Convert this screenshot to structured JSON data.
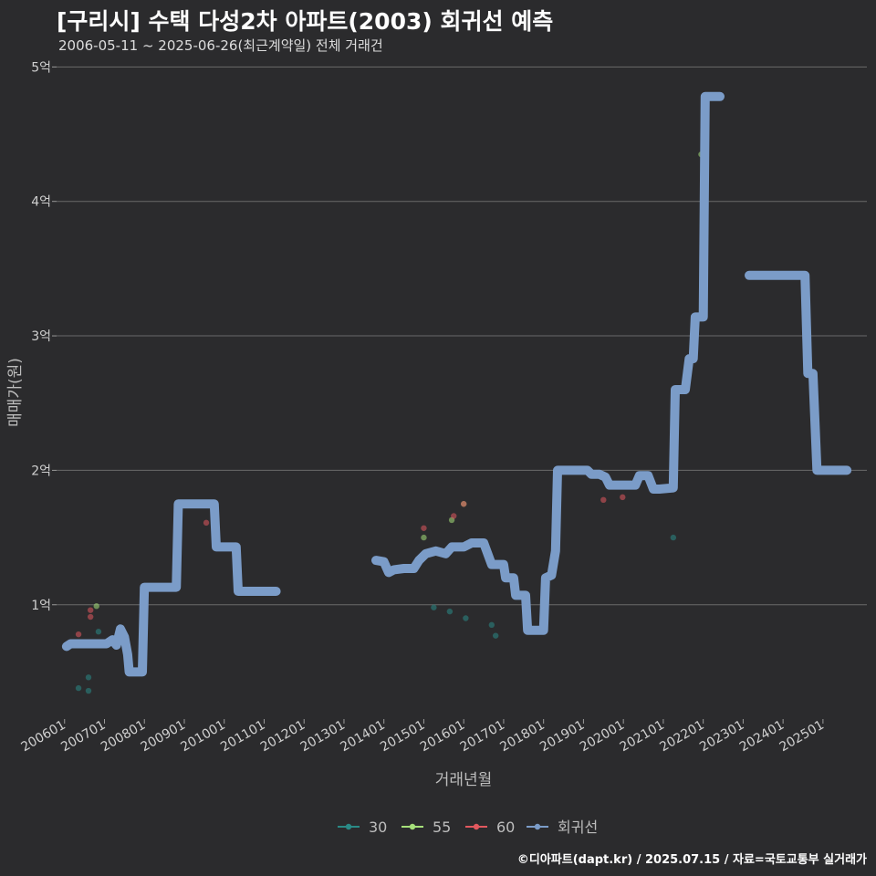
{
  "chart_data": {
    "type": "line",
    "title": "[구리시] 수택 다성2차 아파트(2003) 회귀선 예측",
    "subtitle": "2006-05-11 ~ 2025-06-26(최근계약일) 전체 거래건",
    "xlabel": "거래년월",
    "ylabel": "매매가(원)",
    "caption": "©디아파트(dapt.kr) / 2025.07.15 / 자료=국토교통부 실거래가",
    "y_ticks": [
      {
        "v": 1,
        "label": "1억"
      },
      {
        "v": 2,
        "label": "2억"
      },
      {
        "v": 3,
        "label": "3억"
      },
      {
        "v": 4,
        "label": "4억"
      },
      {
        "v": 5,
        "label": "5억"
      }
    ],
    "ylim": [
      0.15,
      5.05
    ],
    "xlim": [
      2005.8,
      2026.1
    ],
    "x_ticks": [
      {
        "v": 2006.0,
        "label": "200601"
      },
      {
        "v": 2007.0,
        "label": "200701"
      },
      {
        "v": 2008.0,
        "label": "200801"
      },
      {
        "v": 2009.0,
        "label": "200901"
      },
      {
        "v": 2010.0,
        "label": "201001"
      },
      {
        "v": 2011.0,
        "label": "201101"
      },
      {
        "v": 2012.0,
        "label": "201201"
      },
      {
        "v": 2013.0,
        "label": "201301"
      },
      {
        "v": 2014.0,
        "label": "201401"
      },
      {
        "v": 2015.0,
        "label": "201501"
      },
      {
        "v": 2016.0,
        "label": "201601"
      },
      {
        "v": 2017.0,
        "label": "201701"
      },
      {
        "v": 2018.0,
        "label": "201801"
      },
      {
        "v": 2019.0,
        "label": "201901"
      },
      {
        "v": 2020.0,
        "label": "202001"
      },
      {
        "v": 2021.0,
        "label": "202101"
      },
      {
        "v": 2022.0,
        "label": "202201"
      },
      {
        "v": 2023.0,
        "label": "202301"
      },
      {
        "v": 2024.0,
        "label": "202401"
      },
      {
        "v": 2025.0,
        "label": "202501"
      }
    ],
    "grid": true,
    "legend_position": "bottom",
    "legend": [
      {
        "name": "30",
        "color": "#2a8a86"
      },
      {
        "name": "55",
        "color": "#a6e07a"
      },
      {
        "name": "60",
        "color": "#e2585e"
      },
      {
        "name": "회귀선",
        "color": "#7b9cc8"
      }
    ],
    "series": [
      {
        "name": "30",
        "color": "#2a8a86",
        "points": [
          {
            "x": 2006.35,
            "y": 0.38
          },
          {
            "x": 2006.6,
            "y": 0.36
          },
          {
            "x": 2006.6,
            "y": 0.46
          },
          {
            "x": 2006.85,
            "y": 0.8
          },
          {
            "x": 2015.25,
            "y": 0.98
          },
          {
            "x": 2015.65,
            "y": 0.95
          },
          {
            "x": 2016.05,
            "y": 0.9
          },
          {
            "x": 2016.7,
            "y": 0.85
          },
          {
            "x": 2016.8,
            "y": 0.77
          },
          {
            "x": 2021.25,
            "y": 1.5
          }
        ]
      },
      {
        "name": "55",
        "color": "#a6e07a",
        "points": [
          {
            "x": 2006.8,
            "y": 0.99
          },
          {
            "x": 2015.0,
            "y": 1.5
          },
          {
            "x": 2015.4,
            "y": 1.4
          },
          {
            "x": 2015.7,
            "y": 1.63
          },
          {
            "x": 2016.0,
            "y": 1.75
          },
          {
            "x": 2021.95,
            "y": 4.35
          }
        ]
      },
      {
        "name": "60",
        "color": "#e2585e",
        "points": [
          {
            "x": 2006.35,
            "y": 0.78
          },
          {
            "x": 2006.65,
            "y": 0.91
          },
          {
            "x": 2006.65,
            "y": 0.96
          },
          {
            "x": 2009.55,
            "y": 1.61
          },
          {
            "x": 2015.0,
            "y": 1.57
          },
          {
            "x": 2016.0,
            "y": 1.75
          },
          {
            "x": 2015.75,
            "y": 1.66
          },
          {
            "x": 2019.5,
            "y": 1.78
          },
          {
            "x": 2019.98,
            "y": 1.8
          },
          {
            "x": 2020.65,
            "y": 1.91
          }
        ]
      },
      {
        "name": "회귀선",
        "color": "#7b9cc8",
        "segments": [
          [
            [
              2006.05,
              0.69
            ],
            [
              2006.15,
              0.71
            ],
            [
              2006.5,
              0.71
            ],
            [
              2006.9,
              0.71
            ],
            [
              2007.05,
              0.71
            ],
            [
              2007.2,
              0.74
            ],
            [
              2007.3,
              0.7
            ],
            [
              2007.4,
              0.82
            ],
            [
              2007.5,
              0.76
            ],
            [
              2007.58,
              0.63
            ],
            [
              2007.62,
              0.5
            ],
            [
              2007.95,
              0.5
            ],
            [
              2008.0,
              1.13
            ],
            [
              2008.8,
              1.13
            ],
            [
              2008.85,
              1.75
            ],
            [
              2009.75,
              1.75
            ],
            [
              2009.8,
              1.43
            ],
            [
              2010.3,
              1.43
            ],
            [
              2010.35,
              1.1
            ],
            [
              2011.3,
              1.1
            ]
          ],
          [
            [
              2013.8,
              1.33
            ],
            [
              2014.0,
              1.32
            ],
            [
              2014.12,
              1.24
            ],
            [
              2014.25,
              1.26
            ],
            [
              2014.5,
              1.27
            ],
            [
              2014.75,
              1.27
            ],
            [
              2014.88,
              1.33
            ],
            [
              2015.05,
              1.38
            ],
            [
              2015.3,
              1.4
            ],
            [
              2015.55,
              1.38
            ],
            [
              2015.7,
              1.43
            ],
            [
              2016.0,
              1.43
            ],
            [
              2016.2,
              1.46
            ],
            [
              2016.5,
              1.46
            ],
            [
              2016.7,
              1.3
            ],
            [
              2017.0,
              1.3
            ],
            [
              2017.05,
              1.2
            ],
            [
              2017.25,
              1.2
            ],
            [
              2017.3,
              1.07
            ],
            [
              2017.55,
              1.07
            ],
            [
              2017.6,
              0.81
            ],
            [
              2018.0,
              0.81
            ],
            [
              2018.05,
              1.2
            ],
            [
              2018.2,
              1.22
            ],
            [
              2018.3,
              1.4
            ],
            [
              2018.35,
              2.0
            ],
            [
              2019.1,
              2.0
            ],
            [
              2019.2,
              1.97
            ],
            [
              2019.4,
              1.97
            ],
            [
              2019.55,
              1.95
            ],
            [
              2019.65,
              1.89
            ],
            [
              2020.3,
              1.89
            ],
            [
              2020.4,
              1.96
            ],
            [
              2020.62,
              1.96
            ],
            [
              2020.75,
              1.86
            ],
            [
              2020.9,
              1.86
            ],
            [
              2021.25,
              1.87
            ],
            [
              2021.3,
              2.6
            ],
            [
              2021.55,
              2.6
            ],
            [
              2021.65,
              2.83
            ],
            [
              2021.75,
              2.83
            ],
            [
              2021.8,
              3.14
            ],
            [
              2022.0,
              3.14
            ],
            [
              2022.05,
              4.78
            ],
            [
              2022.42,
              4.78
            ]
          ],
          [
            [
              2023.15,
              3.45
            ],
            [
              2024.55,
              3.45
            ],
            [
              2024.62,
              2.72
            ],
            [
              2024.75,
              2.72
            ],
            [
              2024.85,
              2.0
            ],
            [
              2025.6,
              2.0
            ]
          ]
        ]
      }
    ]
  }
}
